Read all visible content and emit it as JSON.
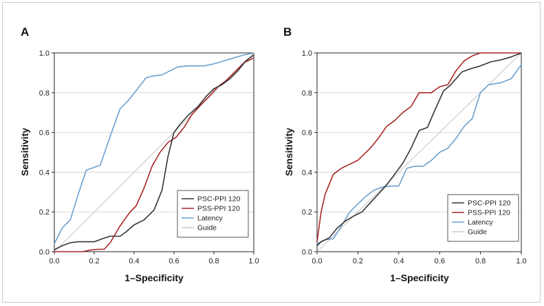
{
  "chart_data": [
    {
      "type": "line",
      "panel": "A",
      "xlabel": "1–Specificity",
      "ylabel": "Sensitivity",
      "xlim": [
        0,
        1
      ],
      "ylim": [
        0,
        1
      ],
      "xticks": [
        "0.0",
        "0.2",
        "0.4",
        "0.6",
        "0.8",
        "1.0"
      ],
      "yticks": [
        "0.0",
        "0.2",
        "0.4",
        "0.6",
        "0.8",
        "1.0"
      ],
      "grid": "horizontal",
      "legend": "bottom-right",
      "series": [
        {
          "name": "PSC-PPI 120",
          "color": "#333333",
          "points": [
            [
              0,
              0.01
            ],
            [
              0.04,
              0.03
            ],
            [
              0.08,
              0.045
            ],
            [
              0.12,
              0.05
            ],
            [
              0.2,
              0.05
            ],
            [
              0.24,
              0.065
            ],
            [
              0.28,
              0.078
            ],
            [
              0.33,
              0.078
            ],
            [
              0.36,
              0.1
            ],
            [
              0.4,
              0.135
            ],
            [
              0.45,
              0.16
            ],
            [
              0.5,
              0.21
            ],
            [
              0.54,
              0.31
            ],
            [
              0.57,
              0.48
            ],
            [
              0.6,
              0.6
            ],
            [
              0.63,
              0.64
            ],
            [
              0.67,
              0.685
            ],
            [
              0.72,
              0.73
            ],
            [
              0.76,
              0.78
            ],
            [
              0.8,
              0.82
            ],
            [
              0.84,
              0.84
            ],
            [
              0.88,
              0.87
            ],
            [
              0.92,
              0.91
            ],
            [
              0.96,
              0.96
            ],
            [
              1.0,
              0.99
            ]
          ]
        },
        {
          "name": "PSS-PPI 120",
          "color": "#a82525",
          "points": [
            [
              0,
              0
            ],
            [
              0.14,
              0
            ],
            [
              0.18,
              0.008
            ],
            [
              0.22,
              0.012
            ],
            [
              0.25,
              0.012
            ],
            [
              0.28,
              0.045
            ],
            [
              0.33,
              0.13
            ],
            [
              0.38,
              0.2
            ],
            [
              0.41,
              0.23
            ],
            [
              0.45,
              0.32
            ],
            [
              0.49,
              0.43
            ],
            [
              0.53,
              0.5
            ],
            [
              0.57,
              0.55
            ],
            [
              0.61,
              0.575
            ],
            [
              0.65,
              0.625
            ],
            [
              0.69,
              0.69
            ],
            [
              0.74,
              0.745
            ],
            [
              0.78,
              0.785
            ],
            [
              0.82,
              0.83
            ],
            [
              0.86,
              0.86
            ],
            [
              0.9,
              0.9
            ],
            [
              0.95,
              0.95
            ],
            [
              1.0,
              0.975
            ]
          ]
        },
        {
          "name": "Latency",
          "color": "#6ba0d0",
          "points": [
            [
              0,
              0.04
            ],
            [
              0.04,
              0.12
            ],
            [
              0.08,
              0.16
            ],
            [
              0.12,
              0.29
            ],
            [
              0.16,
              0.41
            ],
            [
              0.23,
              0.435
            ],
            [
              0.28,
              0.58
            ],
            [
              0.33,
              0.72
            ],
            [
              0.37,
              0.76
            ],
            [
              0.41,
              0.81
            ],
            [
              0.46,
              0.875
            ],
            [
              0.5,
              0.885
            ],
            [
              0.54,
              0.89
            ],
            [
              0.62,
              0.93
            ],
            [
              0.67,
              0.935
            ],
            [
              0.75,
              0.935
            ],
            [
              0.8,
              0.945
            ],
            [
              0.85,
              0.96
            ],
            [
              0.9,
              0.975
            ],
            [
              0.95,
              0.99
            ],
            [
              1.0,
              1.0
            ]
          ]
        },
        {
          "name": "Guide",
          "color": "#cccccc",
          "points": [
            [
              0,
              0
            ],
            [
              1,
              1
            ]
          ]
        }
      ]
    },
    {
      "type": "line",
      "panel": "B",
      "xlabel": "1–Specificity",
      "ylabel": "Sensitivity",
      "xlim": [
        0,
        1
      ],
      "ylim": [
        0,
        1
      ],
      "xticks": [
        "0.0",
        "0.2",
        "0.4",
        "0.6",
        "0.8",
        "1.0"
      ],
      "yticks": [
        "0.0",
        "0.2",
        "0.4",
        "0.6",
        "0.8",
        "1.0"
      ],
      "grid": "horizontal",
      "legend": "bottom-right",
      "series": [
        {
          "name": "PSC-PPI 120",
          "color": "#333333",
          "points": [
            [
              0,
              0.03
            ],
            [
              0.02,
              0.05
            ],
            [
              0.06,
              0.07
            ],
            [
              0.1,
              0.12
            ],
            [
              0.14,
              0.155
            ],
            [
              0.18,
              0.18
            ],
            [
              0.22,
              0.2
            ],
            [
              0.26,
              0.245
            ],
            [
              0.3,
              0.29
            ],
            [
              0.34,
              0.335
            ],
            [
              0.38,
              0.39
            ],
            [
              0.42,
              0.445
            ],
            [
              0.46,
              0.52
            ],
            [
              0.5,
              0.61
            ],
            [
              0.54,
              0.625
            ],
            [
              0.58,
              0.72
            ],
            [
              0.62,
              0.81
            ],
            [
              0.65,
              0.835
            ],
            [
              0.68,
              0.87
            ],
            [
              0.71,
              0.905
            ],
            [
              0.75,
              0.92
            ],
            [
              0.8,
              0.935
            ],
            [
              0.85,
              0.955
            ],
            [
              0.9,
              0.965
            ],
            [
              0.95,
              0.98
            ],
            [
              1.0,
              1.0
            ]
          ]
        },
        {
          "name": "PSS-PPI 120",
          "color": "#a82525",
          "points": [
            [
              0,
              0.05
            ],
            [
              0.02,
              0.2
            ],
            [
              0.04,
              0.29
            ],
            [
              0.06,
              0.34
            ],
            [
              0.08,
              0.39
            ],
            [
              0.12,
              0.42
            ],
            [
              0.16,
              0.44
            ],
            [
              0.2,
              0.46
            ],
            [
              0.22,
              0.48
            ],
            [
              0.26,
              0.52
            ],
            [
              0.3,
              0.57
            ],
            [
              0.34,
              0.63
            ],
            [
              0.38,
              0.66
            ],
            [
              0.42,
              0.7
            ],
            [
              0.46,
              0.73
            ],
            [
              0.5,
              0.8
            ],
            [
              0.56,
              0.8
            ],
            [
              0.6,
              0.83
            ],
            [
              0.64,
              0.84
            ],
            [
              0.68,
              0.91
            ],
            [
              0.72,
              0.96
            ],
            [
              0.76,
              0.985
            ],
            [
              0.8,
              1.0
            ],
            [
              1.0,
              1.0
            ]
          ]
        },
        {
          "name": "Latency",
          "color": "#6ba0d0",
          "points": [
            [
              0,
              0.04
            ],
            [
              0.04,
              0.06
            ],
            [
              0.08,
              0.065
            ],
            [
              0.12,
              0.13
            ],
            [
              0.16,
              0.2
            ],
            [
              0.2,
              0.24
            ],
            [
              0.24,
              0.28
            ],
            [
              0.28,
              0.31
            ],
            [
              0.32,
              0.325
            ],
            [
              0.36,
              0.33
            ],
            [
              0.4,
              0.33
            ],
            [
              0.44,
              0.42
            ],
            [
              0.48,
              0.43
            ],
            [
              0.52,
              0.43
            ],
            [
              0.56,
              0.46
            ],
            [
              0.6,
              0.5
            ],
            [
              0.64,
              0.52
            ],
            [
              0.68,
              0.57
            ],
            [
              0.72,
              0.63
            ],
            [
              0.76,
              0.67
            ],
            [
              0.8,
              0.8
            ],
            [
              0.84,
              0.84
            ],
            [
              0.9,
              0.85
            ],
            [
              0.95,
              0.87
            ],
            [
              1.0,
              0.94
            ]
          ]
        },
        {
          "name": "Guide",
          "color": "#cccccc",
          "points": [
            [
              0,
              0
            ],
            [
              1,
              1
            ]
          ]
        }
      ]
    }
  ]
}
